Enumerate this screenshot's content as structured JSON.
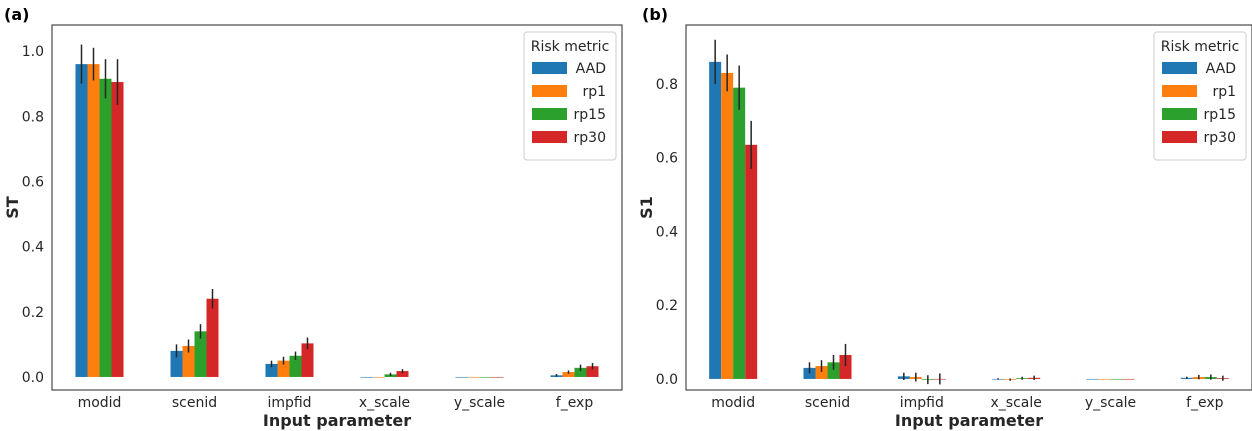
{
  "chart_data": [
    {
      "type": "bar",
      "panel": "(a)",
      "title": "",
      "xlabel": "Input parameter",
      "ylabel": "ST",
      "ylim": [
        -0.04,
        1.08
      ],
      "yticks": [
        "0.0",
        "0.2",
        "0.4",
        "0.6",
        "0.8",
        "1.0"
      ],
      "yticks_values": [
        0.0,
        0.2,
        0.4,
        0.6,
        0.8,
        1.0
      ],
      "grid": false,
      "legend": {
        "title": "Risk metric",
        "placement": "top-right"
      },
      "categories": [
        "modid",
        "scenid",
        "impfid",
        "x_scale",
        "y_scale",
        "f_exp"
      ],
      "series": [
        {
          "name": "AAD",
          "color": "#1f77b4",
          "values": [
            0.96,
            0.08,
            0.04,
            0.0,
            0.0,
            0.005
          ],
          "errors": [
            0.06,
            0.02,
            0.01,
            0.0,
            0.0,
            0.004
          ]
        },
        {
          "name": "rp1",
          "color": "#ff7f0e",
          "values": [
            0.96,
            0.095,
            0.05,
            0.0,
            0.0,
            0.015
          ],
          "errors": [
            0.05,
            0.02,
            0.012,
            0.0,
            0.0,
            0.005
          ]
        },
        {
          "name": "rp15",
          "color": "#2ca02c",
          "values": [
            0.915,
            0.14,
            0.065,
            0.008,
            0.0,
            0.028
          ],
          "errors": [
            0.06,
            0.022,
            0.013,
            0.005,
            0.0,
            0.01
          ]
        },
        {
          "name": "rp30",
          "color": "#d62728",
          "values": [
            0.905,
            0.24,
            0.103,
            0.018,
            0.0,
            0.033
          ],
          "errors": [
            0.07,
            0.03,
            0.018,
            0.006,
            0.0,
            0.01
          ]
        }
      ]
    },
    {
      "type": "bar",
      "panel": "(b)",
      "title": "",
      "xlabel": "Input parameter",
      "ylabel": "S1",
      "ylim": [
        -0.03,
        0.96
      ],
      "yticks": [
        "0.0",
        "0.2",
        "0.4",
        "0.6",
        "0.8"
      ],
      "yticks_values": [
        0.0,
        0.2,
        0.4,
        0.6,
        0.8
      ],
      "grid": false,
      "legend": {
        "title": "Risk metric",
        "placement": "top-right"
      },
      "categories": [
        "modid",
        "scenid",
        "impfid",
        "x_scale",
        "y_scale",
        "f_exp"
      ],
      "series": [
        {
          "name": "AAD",
          "color": "#1f77b4",
          "values": [
            0.86,
            0.03,
            0.007,
            0.0,
            0.0,
            0.003
          ],
          "errors": [
            0.06,
            0.015,
            0.01,
            0.002,
            0.0,
            0.003
          ]
        },
        {
          "name": "rp1",
          "color": "#ff7f0e",
          "values": [
            0.83,
            0.035,
            0.005,
            -0.002,
            0.0,
            0.005
          ],
          "errors": [
            0.05,
            0.016,
            0.012,
            0.003,
            0.0,
            0.006
          ]
        },
        {
          "name": "rp15",
          "color": "#2ca02c",
          "values": [
            0.79,
            0.045,
            -0.002,
            0.002,
            0.0,
            0.005
          ],
          "errors": [
            0.06,
            0.02,
            0.012,
            0.004,
            0.0,
            0.007
          ]
        },
        {
          "name": "rp30",
          "color": "#d62728",
          "values": [
            0.635,
            0.065,
            0.0,
            0.003,
            0.0,
            0.002
          ],
          "errors": [
            0.065,
            0.03,
            0.015,
            0.006,
            0.0,
            0.007
          ]
        }
      ]
    }
  ]
}
